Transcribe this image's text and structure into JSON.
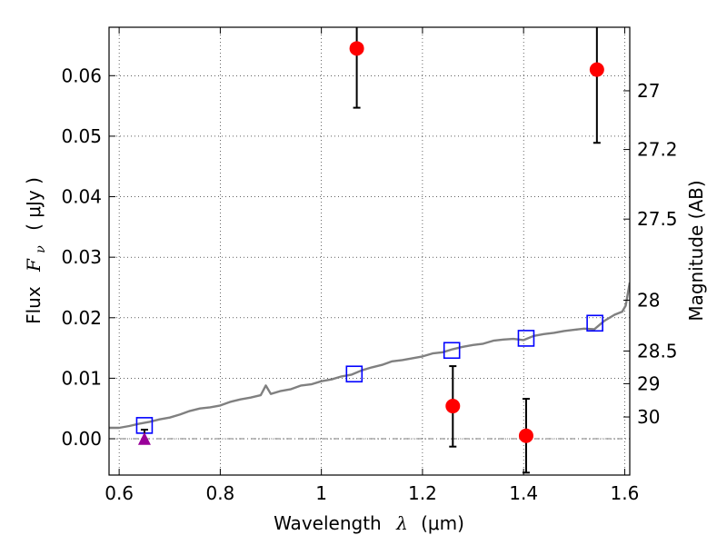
{
  "chart_data": {
    "type": "scatter",
    "title": "",
    "xlabel": {
      "prefix": "Wavelength",
      "symbol": "λ",
      "unit": "(μm)"
    },
    "ylabel": {
      "prefix": "Flux",
      "symbol": "F",
      "subscript": "ν",
      "unit": "( μJy )"
    },
    "y2label": "Magnitude (AB)",
    "xlim": [
      0.58,
      1.61
    ],
    "ylim": [
      -0.006,
      0.068
    ],
    "xticks": [
      0.6,
      0.8,
      1.0,
      1.2,
      1.4,
      1.6
    ],
    "xtick_labels": [
      "0.6",
      "0.8",
      "1",
      "1.2",
      "1.4",
      "1.6"
    ],
    "yticks": [
      0.0,
      0.01,
      0.02,
      0.03,
      0.04,
      0.05,
      0.06
    ],
    "ytick_labels": [
      "0.00",
      "0.01",
      "0.02",
      "0.03",
      "0.04",
      "0.05",
      "0.06"
    ],
    "y2ticks": [
      {
        "label": "27",
        "flux": 0.0575
      },
      {
        "label": "27.2",
        "flux": 0.0478
      },
      {
        "label": "27.5",
        "flux": 0.0363
      },
      {
        "label": "28",
        "flux": 0.0229
      },
      {
        "label": "28.5",
        "flux": 0.0145
      },
      {
        "label": "29",
        "flux": 0.0091
      },
      {
        "label": "30",
        "flux": 0.0036
      }
    ],
    "grid": true,
    "zero_line": 0.0,
    "series": [
      {
        "kind": "line",
        "color": "#808080",
        "x": [
          0.58,
          0.6,
          0.62,
          0.64,
          0.66,
          0.68,
          0.7,
          0.72,
          0.74,
          0.76,
          0.78,
          0.8,
          0.82,
          0.84,
          0.86,
          0.88,
          0.89,
          0.9,
          0.92,
          0.94,
          0.96,
          0.98,
          1.0,
          1.02,
          1.04,
          1.06,
          1.08,
          1.1,
          1.12,
          1.14,
          1.16,
          1.18,
          1.2,
          1.22,
          1.24,
          1.26,
          1.28,
          1.3,
          1.32,
          1.34,
          1.36,
          1.38,
          1.4,
          1.42,
          1.44,
          1.46,
          1.48,
          1.5,
          1.52,
          1.54,
          1.56,
          1.58,
          1.595,
          1.602,
          1.61
        ],
        "y": [
          0.0018,
          0.0018,
          0.0021,
          0.0025,
          0.0028,
          0.0032,
          0.0035,
          0.004,
          0.0046,
          0.005,
          0.0052,
          0.0055,
          0.0061,
          0.0065,
          0.0068,
          0.0072,
          0.0088,
          0.0074,
          0.0079,
          0.0082,
          0.0088,
          0.009,
          0.0095,
          0.0098,
          0.0103,
          0.0106,
          0.0113,
          0.0118,
          0.0122,
          0.0128,
          0.013,
          0.0133,
          0.0136,
          0.0141,
          0.0143,
          0.0148,
          0.0152,
          0.0155,
          0.0157,
          0.0162,
          0.0164,
          0.0165,
          0.0163,
          0.017,
          0.0173,
          0.0175,
          0.0178,
          0.018,
          0.0182,
          0.0181,
          0.0195,
          0.0205,
          0.021,
          0.022,
          0.0258
        ]
      },
      {
        "kind": "squares",
        "color": "#0000ff",
        "x": [
          0.65,
          1.065,
          1.258,
          1.405,
          1.541
        ],
        "y": [
          0.0022,
          0.0107,
          0.0146,
          0.0166,
          0.0191
        ]
      },
      {
        "kind": "points_errorbars",
        "color": "#ff0000",
        "x": [
          1.07,
          1.26,
          1.405,
          1.545
        ],
        "y": [
          0.0645,
          0.0054,
          0.0005,
          0.061
        ],
        "yerr_low": [
          0.0098,
          0.0067,
          0.0061,
          0.0121
        ],
        "yerr_high": [
          0.0098,
          0.0066,
          0.0061,
          0.0121
        ]
      },
      {
        "kind": "triangle_errorbar",
        "color": "#990099",
        "x": [
          0.65
        ],
        "y": [
          -0.0001
        ],
        "yerr_low": [
          0.0
        ],
        "yerr_high": [
          0.0016
        ]
      }
    ]
  }
}
